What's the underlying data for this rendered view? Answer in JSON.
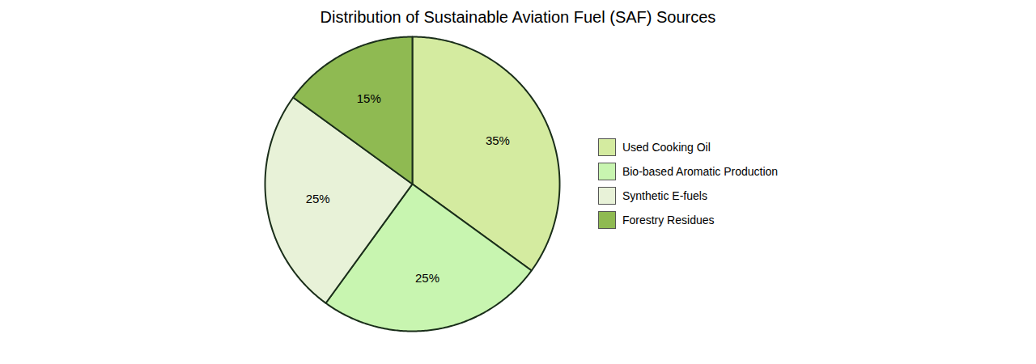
{
  "chart_data": {
    "type": "pie",
    "title": "Distribution of Sustainable Aviation Fuel (SAF) Sources",
    "categories": [
      "Used Cooking Oil",
      "Bio-based Aromatic Production",
      "Synthetic E-fuels",
      "Forestry Residues"
    ],
    "values": [
      35,
      25,
      25,
      15
    ],
    "value_labels": [
      "35%",
      "25%",
      "25%",
      "15%"
    ],
    "colors": [
      "#d4eba0",
      "#c8f5b0",
      "#e8f2d8",
      "#8fba52"
    ],
    "data_labels": true,
    "legend": "right"
  }
}
